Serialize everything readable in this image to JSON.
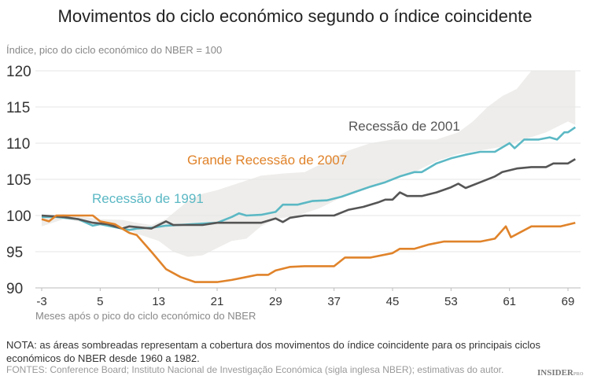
{
  "chart_data": {
    "type": "line",
    "title": "Movimentos do ciclo económico segundo o índice coincidente",
    "ylabel": "Índice, pico do ciclo económico do NBER = 100",
    "xlabel": "Meses após o pico do ciclo económico do NBER",
    "xlim": [
      -3,
      69
    ],
    "ylim": [
      90,
      120
    ],
    "xticks": [
      -3,
      5,
      13,
      21,
      29,
      37,
      45,
      53,
      61,
      69
    ],
    "yticks": [
      90,
      95,
      100,
      105,
      110,
      115,
      120
    ],
    "grid": true,
    "band": {
      "color": "#eeedeb",
      "lower": [
        [
          -3,
          98.5
        ],
        [
          0,
          99.5
        ],
        [
          5,
          98.7
        ],
        [
          8,
          98.5
        ],
        [
          10,
          97.5
        ],
        [
          13,
          96.5
        ],
        [
          15,
          95
        ],
        [
          17,
          94.3
        ],
        [
          19,
          94.5
        ],
        [
          21,
          95.5
        ],
        [
          23,
          96.5
        ],
        [
          25,
          96.8
        ],
        [
          27,
          98.5
        ],
        [
          29,
          99.5
        ],
        [
          32,
          100
        ],
        [
          35,
          101
        ],
        [
          38,
          102.5
        ],
        [
          41,
          103.5
        ],
        [
          44,
          104.5
        ],
        [
          48,
          106
        ],
        [
          51,
          107.5
        ],
        [
          54,
          108.5
        ],
        [
          57,
          109
        ],
        [
          60,
          109.5
        ],
        [
          63,
          110.5
        ],
        [
          66,
          111.5
        ],
        [
          69,
          113
        ]
      ],
      "upper": [
        [
          -3,
          100
        ],
        [
          0,
          100.2
        ],
        [
          5,
          99.5
        ],
        [
          8,
          99.4
        ],
        [
          10,
          99
        ],
        [
          12,
          98.7
        ],
        [
          14,
          99.5
        ],
        [
          17,
          102
        ],
        [
          19,
          103
        ],
        [
          21,
          103.5
        ],
        [
          24,
          104.5
        ],
        [
          27,
          105.5
        ],
        [
          30,
          105.8
        ],
        [
          33,
          106
        ],
        [
          36,
          107.5
        ],
        [
          39,
          109
        ],
        [
          42,
          110
        ],
        [
          45,
          110.5
        ],
        [
          48,
          110.5
        ],
        [
          51,
          110.5
        ],
        [
          54,
          111.5
        ],
        [
          56,
          113
        ],
        [
          58,
          115
        ],
        [
          60,
          116.5
        ],
        [
          62,
          117.5
        ],
        [
          64,
          120
        ],
        [
          69,
          120
        ]
      ]
    },
    "series": [
      {
        "name": "Recessão de 1991",
        "color": "#5bb8c4",
        "points": [
          [
            -3,
            99.8
          ],
          [
            -1,
            99.8
          ],
          [
            2,
            99.5
          ],
          [
            4,
            98.6
          ],
          [
            5,
            98.8
          ],
          [
            8,
            98.2
          ],
          [
            9,
            98
          ],
          [
            10,
            98.2
          ],
          [
            12,
            98.3
          ],
          [
            14,
            98.6
          ],
          [
            21,
            99
          ],
          [
            23,
            99.8
          ],
          [
            24,
            100.3
          ],
          [
            25,
            100
          ],
          [
            27,
            100.1
          ],
          [
            29,
            100.5
          ],
          [
            30,
            101.5
          ],
          [
            32,
            101.5
          ],
          [
            34,
            102
          ],
          [
            36,
            102.1
          ],
          [
            38,
            102.6
          ],
          [
            40,
            103.3
          ],
          [
            42,
            104
          ],
          [
            44,
            104.6
          ],
          [
            46,
            105.4
          ],
          [
            48,
            106
          ],
          [
            49,
            106
          ],
          [
            51,
            107.2
          ],
          [
            53,
            107.9
          ],
          [
            55,
            108.4
          ],
          [
            57,
            108.8
          ],
          [
            59,
            108.8
          ],
          [
            61,
            110
          ],
          [
            61.7,
            109.3
          ],
          [
            63,
            110.5
          ],
          [
            65,
            110.5
          ],
          [
            66.5,
            110.8
          ],
          [
            67.5,
            110.5
          ],
          [
            68.5,
            111.5
          ],
          [
            69,
            111.5
          ],
          [
            70,
            112.2
          ]
        ]
      },
      {
        "name": "Recessão de 2001",
        "color": "#555555",
        "points": [
          [
            -3,
            100
          ],
          [
            0,
            99.8
          ],
          [
            2,
            99.5
          ],
          [
            4,
            99
          ],
          [
            6,
            98.8
          ],
          [
            8,
            98.2
          ],
          [
            9,
            98.5
          ],
          [
            12,
            98.2
          ],
          [
            14,
            99.2
          ],
          [
            15,
            98.7
          ],
          [
            19,
            98.7
          ],
          [
            21,
            99
          ],
          [
            27,
            99
          ],
          [
            29,
            99.6
          ],
          [
            30,
            99.1
          ],
          [
            31,
            99.7
          ],
          [
            33,
            100
          ],
          [
            37,
            100
          ],
          [
            39,
            100.8
          ],
          [
            41,
            101.2
          ],
          [
            43,
            101.8
          ],
          [
            44,
            102.2
          ],
          [
            45,
            102.2
          ],
          [
            46,
            103.2
          ],
          [
            47,
            102.7
          ],
          [
            49,
            102.7
          ],
          [
            51,
            103.2
          ],
          [
            53,
            103.9
          ],
          [
            54,
            104.4
          ],
          [
            55,
            103.8
          ],
          [
            57,
            104.6
          ],
          [
            59,
            105.4
          ],
          [
            60,
            106
          ],
          [
            62,
            106.5
          ],
          [
            64,
            106.7
          ],
          [
            66,
            106.7
          ],
          [
            67,
            107.2
          ],
          [
            69,
            107.2
          ],
          [
            70,
            107.8
          ]
        ]
      },
      {
        "name": "Grande Recessão de 2007",
        "color": "#e0832a",
        "points": [
          [
            -3,
            99.5
          ],
          [
            -2,
            99.2
          ],
          [
            -1,
            100
          ],
          [
            4,
            100
          ],
          [
            5,
            99.2
          ],
          [
            7,
            98.8
          ],
          [
            8,
            98.2
          ],
          [
            9,
            97.6
          ],
          [
            10,
            97.3
          ],
          [
            12,
            95
          ],
          [
            14,
            92.6
          ],
          [
            16,
            91.5
          ],
          [
            18,
            90.8
          ],
          [
            21,
            90.8
          ],
          [
            23,
            91.1
          ],
          [
            25,
            91.5
          ],
          [
            26.5,
            91.8
          ],
          [
            28,
            91.8
          ],
          [
            29,
            92.4
          ],
          [
            31,
            92.9
          ],
          [
            33,
            93
          ],
          [
            37,
            93
          ],
          [
            38.5,
            94.2
          ],
          [
            42,
            94.2
          ],
          [
            45,
            94.8
          ],
          [
            46,
            95.4
          ],
          [
            48,
            95.4
          ],
          [
            50,
            96
          ],
          [
            52,
            96.4
          ],
          [
            57,
            96.4
          ],
          [
            59,
            96.8
          ],
          [
            60.5,
            98.5
          ],
          [
            61.2,
            97
          ],
          [
            64,
            98.5
          ],
          [
            68,
            98.5
          ],
          [
            70,
            99
          ]
        ]
      }
    ]
  },
  "note": "NOTA: as áreas sombreadas representam a cobertura dos movimentos do índice coincidente para os principais ciclos económicos do NBER desde 1960 a 1982.",
  "sources": "FONTES: Conference Board; Instituto Nacional de Investigação Económica (sigla inglesa NBER); estimativas do autor.",
  "logo": {
    "main": "INSIDER",
    "sub": "PRO"
  }
}
